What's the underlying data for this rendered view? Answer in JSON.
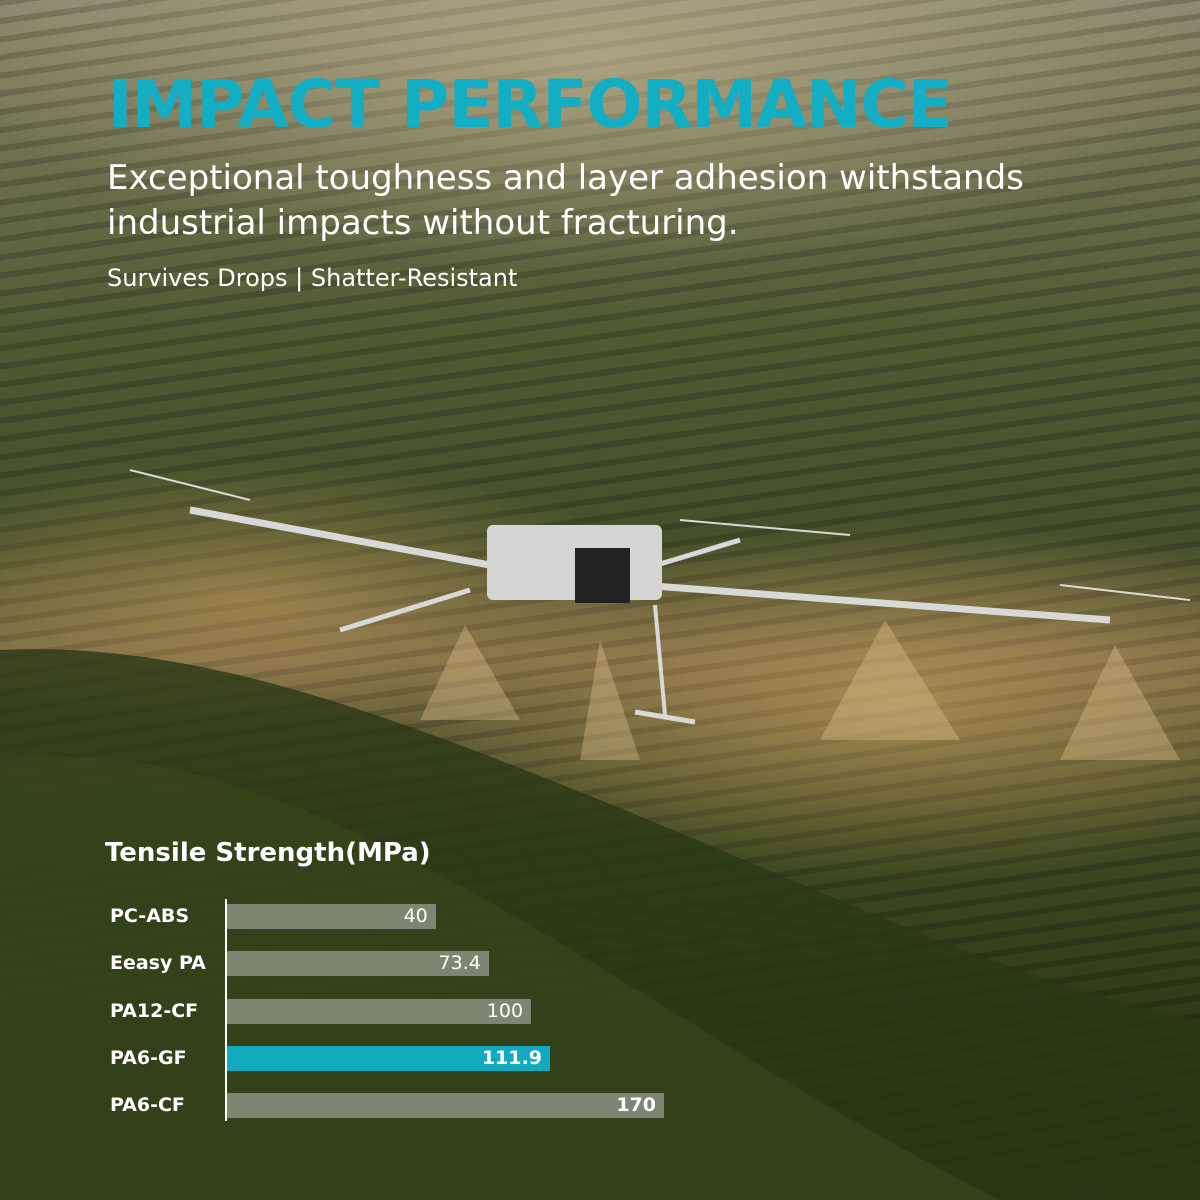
{
  "header": {
    "title": "IMPACT PERFORMANCE",
    "subtitle": "Exceptional toughness and layer adhesion withstands industrial impacts without fracturing.",
    "tagline": "Survives Drops | Shatter-Resistant"
  },
  "colors": {
    "accent": "#12aec4",
    "bar": "#bebebe"
  },
  "chart_data": {
    "type": "bar",
    "orientation": "horizontal",
    "title": "Tensile Strength(MPa)",
    "categories": [
      "PC-ABS",
      "Eeasy PA",
      "PA12-CF",
      "PA6-GF",
      "PA6-CF"
    ],
    "values": [
      40,
      73.4,
      100,
      111.9,
      170
    ],
    "value_labels": [
      "40",
      "73.4",
      "100",
      "111.9",
      "170"
    ],
    "highlighted": "PA6-GF",
    "grid": false,
    "legend": "none"
  }
}
